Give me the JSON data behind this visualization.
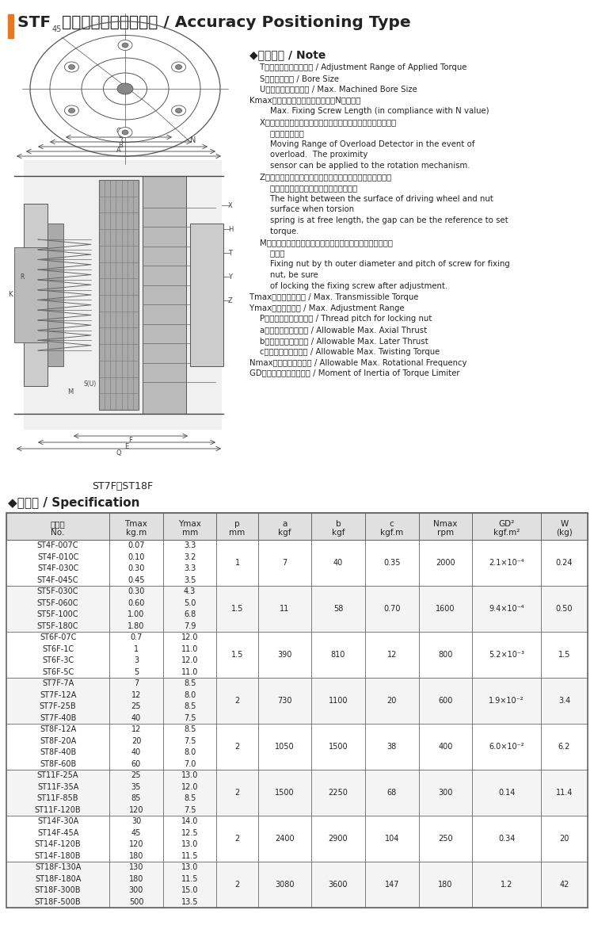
{
  "title": "STF  精密定位型扭力限制器 / Accuracy Positioning Type",
  "title_bar_color": "#E87722",
  "note_title": "◆注意事項 / Note",
  "note_lines": [
    [
      "    T：使用扔力的調整範圍 / Adjustment Range of Applied Torque",
      false
    ],
    [
      "    S：預鬽孔尺寸 / Bore Size",
      false
    ],
    [
      "    U：最大加工孔徑尺寸 / Max. Machined Bore Size",
      false
    ],
    [
      "Kmax：固定螺絲最大長度（請配合N値使用）",
      false
    ],
    [
      "        Max. Fixing Screw Length (in compliance with N value)",
      false
    ],
    [
      "    X：過負荷作用時，過負荷檢出盤移動距離，請使用近接開關於",
      false
    ],
    [
      "        調轉驅動機構上",
      false
    ],
    [
      "        Moving Range of Overload Detector in the event of",
      false
    ],
    [
      "        overload.  The proximity",
      false
    ],
    [
      "        sensor can be applied to the rotation mechanism.",
      false
    ],
    [
      "    Z：扔力彈簧自由長時，驅動軸端面和壓緊螺帽端面的段差尺",
      false
    ],
    [
      "        寸，使用此尺寸，算出設定扔力的基準値",
      false
    ],
    [
      "        The hight between the surface of driving wheel and nut",
      false
    ],
    [
      "        surface when torsion",
      false
    ],
    [
      "        spring is at free length, the gap can be the reference to set",
      false
    ],
    [
      "        torque.",
      false
    ],
    [
      "    M：固定壓緊螺帽的固定螺絲外徑與節距調整後請務必固定螺",
      false
    ],
    [
      "        絲鎖好",
      false
    ],
    [
      "        Fixing nut by th outer diameter and pitch of screw for fixing",
      false
    ],
    [
      "        nut, be sure",
      false
    ],
    [
      "        of locking the fixing screw after adjustment.",
      false
    ],
    [
      "Tmax：最大傳達扔力 / Max. Transmissible Torque",
      false
    ],
    [
      "Ymax：最大調整量 / Max. Adjustment Range",
      false
    ],
    [
      "    P：壓緊螺帽的螺紋節距 / Thread pitch for locking nut",
      false
    ],
    [
      "    a：最大容許軸向推力 / Allowable Max. Axial Thrust",
      false
    ],
    [
      "    b：最大容許側向推力 / Allowable Max. Later Thrust",
      false
    ],
    [
      "    c：最大容許彎曲力距 / Allowable Max. Twisting Torque",
      false
    ],
    [
      "Nmax：最大容許回轉數 / Allowable Max. Rotational Frequency",
      false
    ],
    [
      "GD：扔力限制器的慣性距 / Moment of Inertia of Torque Limiter",
      false
    ]
  ],
  "diagram_caption": "ST7F－ST18F",
  "spec_title": "◆特性表 / Specification",
  "row_groups": [
    {
      "models": [
        "ST4F-007C",
        "ST4F-010C",
        "ST4F-030C",
        "ST4F-045C"
      ],
      "tmax": [
        "0.07",
        "0.10",
        "0.30",
        "0.45"
      ],
      "ymax": [
        "3.3",
        "3.2",
        "3.3",
        "3.5"
      ],
      "p": "1",
      "a": "7",
      "b": "40",
      "c": "0.35",
      "nmax": "2000",
      "gd2": "2.1×10⁻⁴",
      "w": "0.24"
    },
    {
      "models": [
        "ST5F-030C",
        "ST5F-060C",
        "ST5F-100C",
        "ST5F-180C"
      ],
      "tmax": [
        "0.30",
        "0.60",
        "1.00",
        "1.80"
      ],
      "ymax": [
        "4.3",
        "5.0",
        "6.8",
        "7.9"
      ],
      "p": "1.5",
      "a": "11",
      "b": "58",
      "c": "0.70",
      "nmax": "1600",
      "gd2": "9.4×10⁻⁴",
      "w": "0.50"
    },
    {
      "models": [
        "ST6F-07C",
        "ST6F-1C",
        "ST6F-3C",
        "ST6F-5C"
      ],
      "tmax": [
        "0.7",
        "1",
        "3",
        "5"
      ],
      "ymax": [
        "12.0",
        "11.0",
        "12.0",
        "11.0"
      ],
      "p": "1.5",
      "a": "390",
      "b": "810",
      "c": "12",
      "nmax": "800",
      "gd2": "5.2×10⁻³",
      "w": "1.5"
    },
    {
      "models": [
        "ST7F-7A",
        "ST7F-12A",
        "ST7F-25B",
        "ST7F-40B"
      ],
      "tmax": [
        "7",
        "12",
        "25",
        "40"
      ],
      "ymax": [
        "8.5",
        "8.0",
        "8.5",
        "7.5"
      ],
      "p": "2",
      "a": "730",
      "b": "1100",
      "c": "20",
      "nmax": "600",
      "gd2": "1.9×10⁻²",
      "w": "3.4"
    },
    {
      "models": [
        "ST8F-12A",
        "ST8F-20A",
        "ST8F-40B",
        "ST8F-60B"
      ],
      "tmax": [
        "12",
        "20",
        "40",
        "60"
      ],
      "ymax": [
        "8.5",
        "7.5",
        "8.0",
        "7.0"
      ],
      "p": "2",
      "a": "1050",
      "b": "1500",
      "c": "38",
      "nmax": "400",
      "gd2": "6.0×10⁻²",
      "w": "6.2"
    },
    {
      "models": [
        "ST11F-25A",
        "ST11F-35A",
        "ST11F-85B",
        "ST11F-120B"
      ],
      "tmax": [
        "25",
        "35",
        "85",
        "120"
      ],
      "ymax": [
        "13.0",
        "12.0",
        "8.5",
        "7.5"
      ],
      "p": "2",
      "a": "1500",
      "b": "2250",
      "c": "68",
      "nmax": "300",
      "gd2": "0.14",
      "w": "11.4"
    },
    {
      "models": [
        "ST14F-30A",
        "ST14F-45A",
        "ST14F-120B",
        "ST14F-180B"
      ],
      "tmax": [
        "30",
        "45",
        "120",
        "180"
      ],
      "ymax": [
        "14.0",
        "12.5",
        "13.0",
        "11.5"
      ],
      "p": "2",
      "a": "2400",
      "b": "2900",
      "c": "104",
      "nmax": "250",
      "gd2": "0.34",
      "w": "20"
    },
    {
      "models": [
        "ST18F-130A",
        "ST18F-180A",
        "ST18F-300B",
        "ST18F-500B"
      ],
      "tmax": [
        "130",
        "180",
        "300",
        "500"
      ],
      "ymax": [
        "13.0",
        "11.5",
        "15.0",
        "13.5"
      ],
      "p": "2",
      "a": "3080",
      "b": "3600",
      "c": "147",
      "nmax": "180",
      "gd2": "1.2",
      "w": "42"
    }
  ],
  "bg_color": "#ffffff",
  "table_border_color": "#666666",
  "header_bg": "#e0e0e0",
  "text_color": "#222222",
  "orange_color": "#E87722"
}
